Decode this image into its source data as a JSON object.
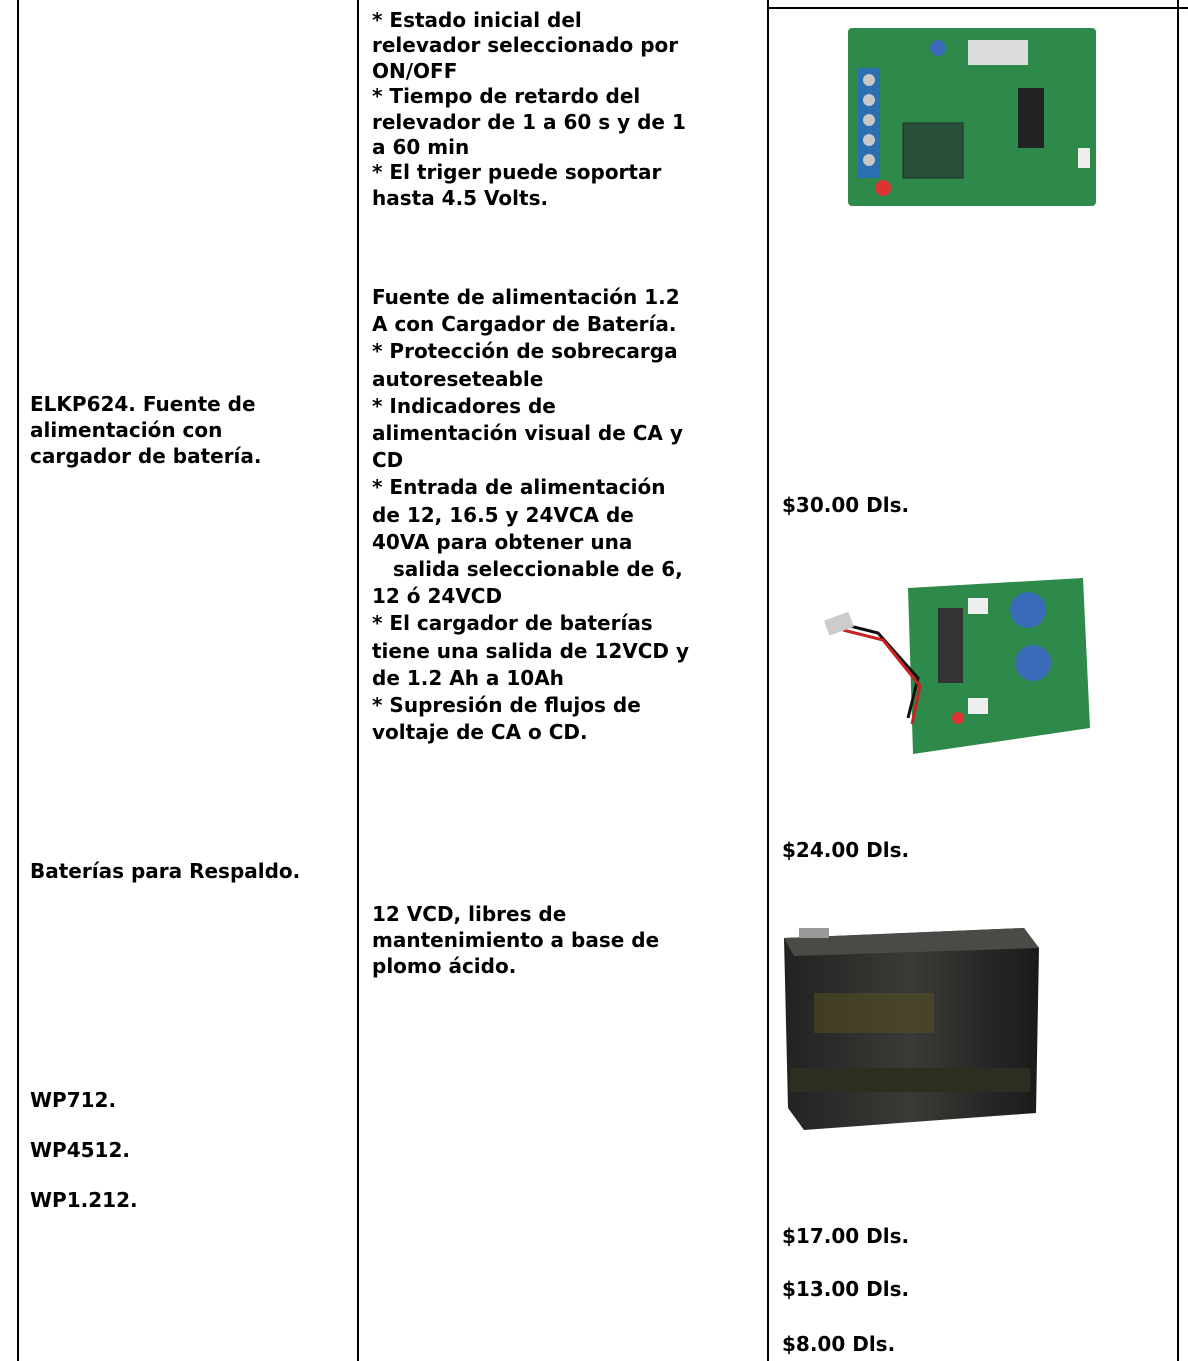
{
  "product_column": [
    {
      "lines": [
        "ELKP624. Fuente de",
        "alimentación con",
        "cargador de batería."
      ]
    },
    {
      "lines": [
        "Baterías para Respaldo."
      ]
    },
    {
      "lines": [
        "WP712."
      ]
    },
    {
      "lines": [
        "WP4512."
      ]
    },
    {
      "lines": [
        "WP1.212."
      ]
    }
  ],
  "description_column": [
    {
      "lines": [
        "* Estado inicial del",
        "relevador seleccionado por",
        "ON/OFF",
        "* Tiempo de retardo del",
        "relevador de 1 a 60 s y de 1",
        "a 60 min",
        "* El triger puede soportar",
        "hasta 4.5 Volts."
      ]
    },
    {
      "lines": [
        "Fuente de alimentación 1.2",
        "A con Cargador de Batería.",
        "* Protección de sobrecarga",
        "autoreseteable",
        "* Indicadores de",
        "alimentación visual de CA y",
        "CD",
        "* Entrada de alimentación",
        "de 12, 16.5 y 24VCA de",
        "40VA para obtener una",
        "   salida seleccionable de 6,",
        "12 ó 24VCD",
        "* El cargador de baterías",
        "tiene una salida de 12VCD y",
        "de 1.2 Ah a 10Ah",
        "* Supresión de flujos de",
        "voltaje de CA o CD."
      ]
    },
    {
      "lines": [
        "12 VCD, libres de",
        "mantenimiento a base de",
        "plomo ácido."
      ]
    }
  ],
  "price_column": [
    {
      "lines": [
        "$30.00 Dls."
      ]
    },
    {
      "lines": [
        "$24.00 Dls."
      ]
    },
    {
      "lines": [
        "$17.00 Dls."
      ]
    },
    {
      "lines": [
        "$13.00 Dls."
      ]
    },
    {
      "lines": [
        "$8.00 Dls."
      ]
    }
  ]
}
